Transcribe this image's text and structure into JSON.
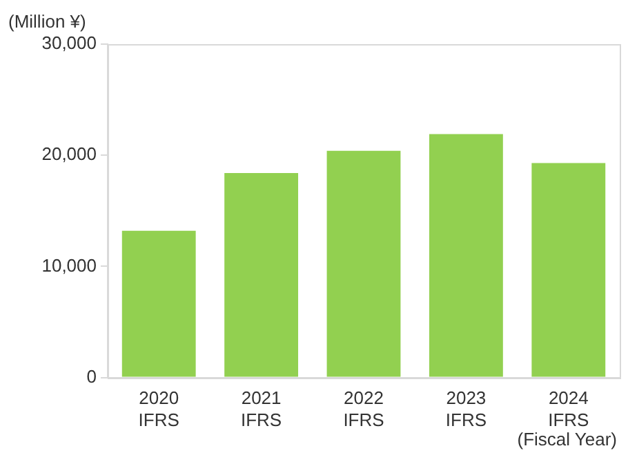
{
  "chart_data": {
    "type": "bar",
    "ylabel": "(Million ¥)",
    "xlabel": "(Fiscal Year)",
    "categories": [
      "2020\nIFRS",
      "2021\nIFRS",
      "2022\nIFRS",
      "2023\nIFRS",
      "2024\nIFRS"
    ],
    "values": [
      13200,
      18400,
      20400,
      21900,
      19300
    ],
    "color": "#92d050",
    "ylim": [
      0,
      30000
    ],
    "yticks": [
      {
        "value": 0,
        "label": "0"
      },
      {
        "value": 10000,
        "label": "10,000"
      },
      {
        "value": 20000,
        "label": "20,000"
      },
      {
        "value": 30000,
        "label": "30,000"
      }
    ],
    "grid": false,
    "legend": false
  }
}
